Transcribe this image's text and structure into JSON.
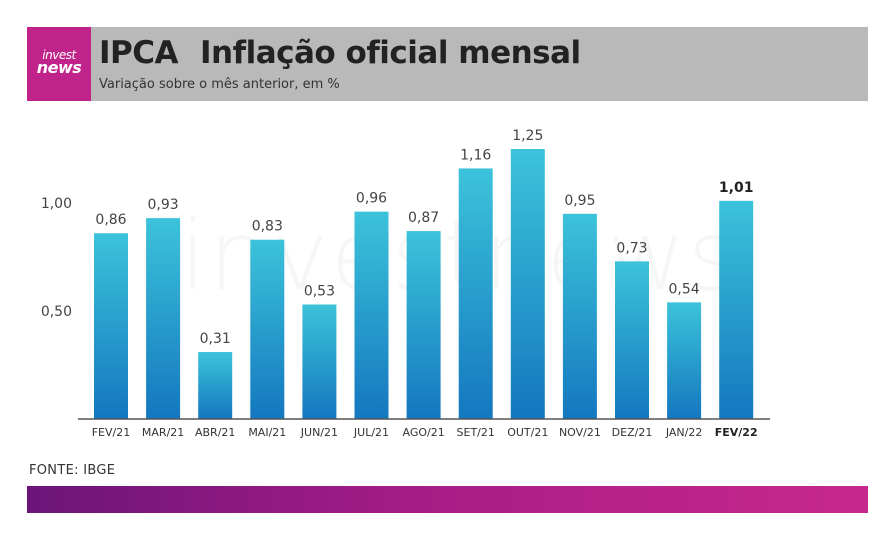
{
  "header": {
    "logo_line1": "invest",
    "logo_line2": "news",
    "title_main": "IPCA",
    "title_rest": "Inflação oficial mensal",
    "subtitle": "Variação sobre o mês anterior, em %"
  },
  "watermark": "investnews",
  "source": "FONTE: IBGE",
  "colors": {
    "header_bg": "#b9b9b9",
    "logo_bg": "#c0238a",
    "bar_top": "#3cc3da",
    "bar_bottom": "#1477bf",
    "footer_start": "#6b1578",
    "footer_end": "#c8288d"
  },
  "chart_data": {
    "type": "bar",
    "title": "Inflação oficial mensal",
    "categories": [
      "FEV/21",
      "MAR/21",
      "ABR/21",
      "MAI/21",
      "JUN/21",
      "JUL/21",
      "AGO/21",
      "SET/21",
      "OUT/21",
      "NOV/21",
      "DEZ/21",
      "JAN/22",
      "FEV/22"
    ],
    "values": [
      0.86,
      0.93,
      0.31,
      0.83,
      0.53,
      0.96,
      0.87,
      1.16,
      1.25,
      0.95,
      0.73,
      0.54,
      1.01
    ],
    "value_labels": [
      "0,86",
      "0,93",
      "0,31",
      "0,83",
      "0,53",
      "0,96",
      "0,87",
      "1,16",
      "1,25",
      "0,95",
      "0,73",
      "0,54",
      "1,01"
    ],
    "highlight_category": "FEV/22",
    "yticks": [
      0.5,
      1.0
    ],
    "ytick_labels": [
      "0,50",
      "1,00"
    ],
    "ylim": [
      0,
      1.25
    ],
    "grid": false,
    "legend": "none"
  }
}
